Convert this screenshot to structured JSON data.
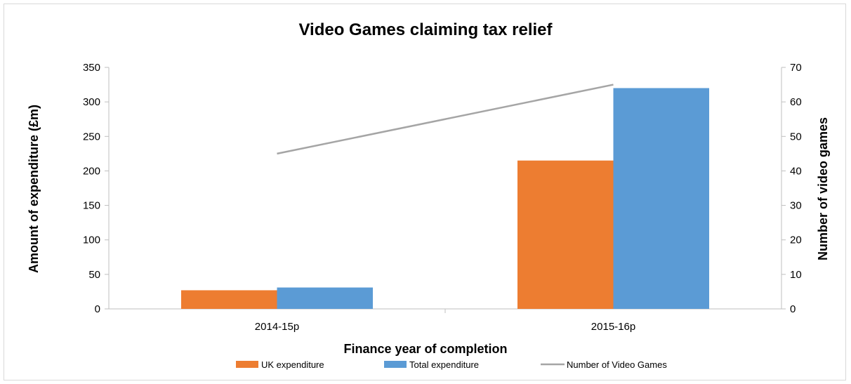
{
  "chart_data": {
    "type": "bar",
    "title": "Video Games claiming tax relief",
    "xlabel": "Finance year of completion",
    "ylabel": "Amount of expenditure (£m)",
    "y2label": "Number of video games",
    "categories": [
      "2014-15p",
      "2015-16p"
    ],
    "ylim": [
      0,
      350
    ],
    "yticks": [
      0,
      50,
      100,
      150,
      200,
      250,
      300,
      350
    ],
    "y2lim": [
      0,
      70
    ],
    "y2ticks": [
      0,
      10,
      20,
      30,
      40,
      50,
      60,
      70
    ],
    "series": [
      {
        "name": "UK expenditure",
        "type": "bar",
        "axis": "left",
        "color": "#ed7d31",
        "values": [
          27,
          215
        ]
      },
      {
        "name": "Total expenditure",
        "type": "bar",
        "axis": "left",
        "color": "#5b9bd5",
        "values": [
          31,
          320
        ]
      },
      {
        "name": "Number of Video Games",
        "type": "line",
        "axis": "right",
        "color": "#a5a5a5",
        "values": [
          45,
          65
        ]
      }
    ],
    "grid": false,
    "legend": "bottom"
  }
}
